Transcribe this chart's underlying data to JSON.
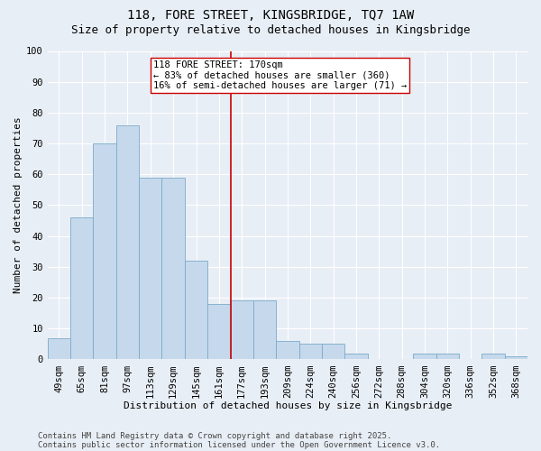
{
  "title_line1": "118, FORE STREET, KINGSBRIDGE, TQ7 1AW",
  "title_line2": "Size of property relative to detached houses in Kingsbridge",
  "xlabel": "Distribution of detached houses by size in Kingsbridge",
  "ylabel": "Number of detached properties",
  "categories": [
    "49sqm",
    "65sqm",
    "81sqm",
    "97sqm",
    "113sqm",
    "129sqm",
    "145sqm",
    "161sqm",
    "177sqm",
    "193sqm",
    "209sqm",
    "224sqm",
    "240sqm",
    "256sqm",
    "272sqm",
    "288sqm",
    "304sqm",
    "320sqm",
    "336sqm",
    "352sqm",
    "368sqm"
  ],
  "values": [
    7,
    46,
    70,
    76,
    59,
    59,
    32,
    18,
    19,
    19,
    6,
    5,
    5,
    2,
    0,
    0,
    2,
    2,
    0,
    2,
    1
  ],
  "bar_color": "#c6d9ec",
  "bar_edge_color": "#7aaac8",
  "vline_color": "#cc0000",
  "annotation_text": "118 FORE STREET: 170sqm\n← 83% of detached houses are smaller (360)\n16% of semi-detached houses are larger (71) →",
  "annotation_box_facecolor": "#ffffff",
  "annotation_box_edgecolor": "#cc0000",
  "background_color": "#e8eef5",
  "plot_background_color": "#e8eef5",
  "grid_color": "#ffffff",
  "ylim": [
    0,
    100
  ],
  "yticks": [
    0,
    10,
    20,
    30,
    40,
    50,
    60,
    70,
    80,
    90,
    100
  ],
  "footer_line1": "Contains HM Land Registry data © Crown copyright and database right 2025.",
  "footer_line2": "Contains public sector information licensed under the Open Government Licence v3.0.",
  "title_fontsize": 10,
  "subtitle_fontsize": 9,
  "axis_label_fontsize": 8,
  "tick_fontsize": 7.5,
  "annotation_fontsize": 7.5,
  "footer_fontsize": 6.5
}
